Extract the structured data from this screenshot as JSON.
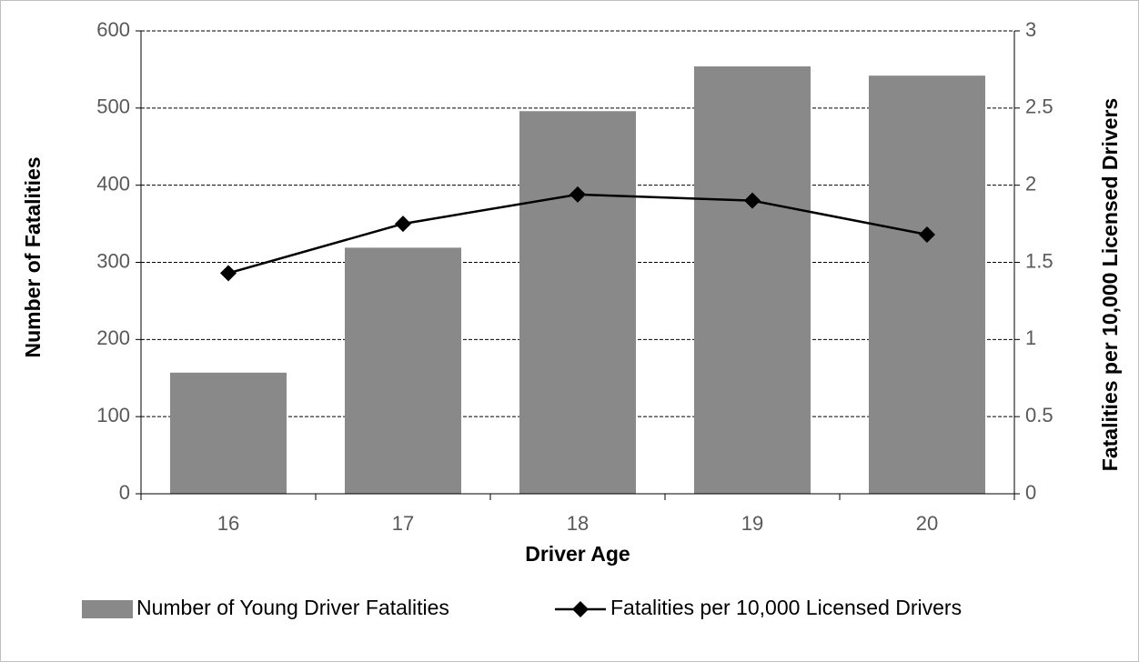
{
  "chart_data": {
    "type": "bar_line",
    "xlabel": "Driver Age",
    "ylabel": "Number of Fatalities",
    "y2label": "Fatalities per 10,000 Licensed Drivers",
    "categories": [
      "16",
      "17",
      "18",
      "19",
      "20"
    ],
    "series": [
      {
        "name": "Number of Young Driver Fatalities",
        "type": "bar",
        "color": "#898989",
        "values": [
          157,
          319,
          496,
          554,
          542
        ]
      },
      {
        "name": "Fatalities per 10,000 Licensed Drivers",
        "type": "line",
        "axis": "y2",
        "color": "#000000",
        "values": [
          1.43,
          1.75,
          1.94,
          1.9,
          1.68
        ]
      }
    ],
    "ylim": [
      0,
      600
    ],
    "yticks": [
      0,
      100,
      200,
      300,
      400,
      500,
      600
    ],
    "y2lim": [
      0,
      3
    ],
    "y2ticks": [
      0,
      0.5,
      1,
      1.5,
      2,
      2.5,
      3
    ],
    "grid": true,
    "legend": "bottom"
  }
}
